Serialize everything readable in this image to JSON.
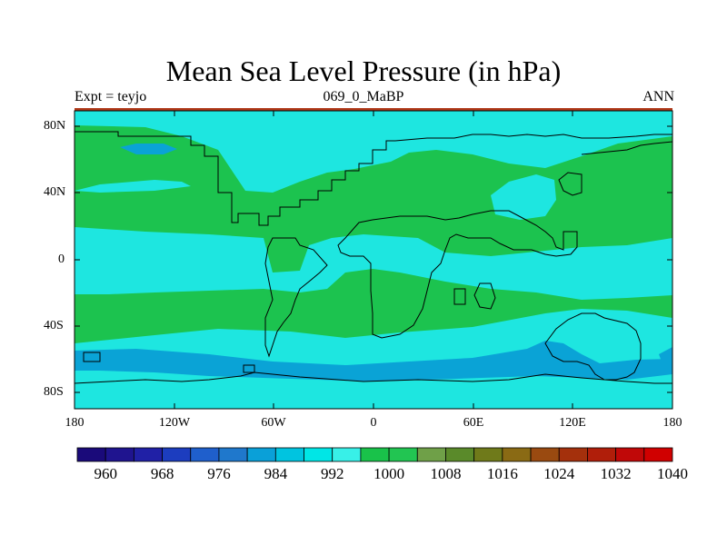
{
  "title": "Mean Sea Level Pressure (in hPa)",
  "subtitle_left": "Expt = teyjo",
  "subtitle_center": "069_0_MaBP",
  "subtitle_right": "ANN",
  "lat_labels": [
    "80N",
    "40N",
    "0",
    "40S",
    "80S"
  ],
  "lon_labels": [
    "180",
    "120W",
    "60W",
    "0",
    "60E",
    "120E",
    "180"
  ],
  "colorbar": {
    "labels": [
      "960",
      "968",
      "976",
      "984",
      "992",
      "1000",
      "1008",
      "1016",
      "1024",
      "1032",
      "1040"
    ],
    "colors": [
      "#1a0a7a",
      "#1f148f",
      "#2020a6",
      "#1c3dbf",
      "#1f5fcc",
      "#1f78cc",
      "#0aa0d8",
      "#00c4e0",
      "#00e6e6",
      "#38f0e8",
      "#19c24a",
      "#22c552",
      "#6fa048",
      "#5a8a2a",
      "#6f7a1a",
      "#8a6a14",
      "#9a4a10",
      "#a4300c",
      "#b01e0a",
      "#c00808",
      "#d00000"
    ]
  },
  "palette": {
    "low_deep": "#0aa3d6",
    "low_mid": "#1fb6df",
    "medium": "#1ee6e0",
    "high": "#1cc34f",
    "coast": "#000000",
    "top_band": "#b03a1a"
  }
}
